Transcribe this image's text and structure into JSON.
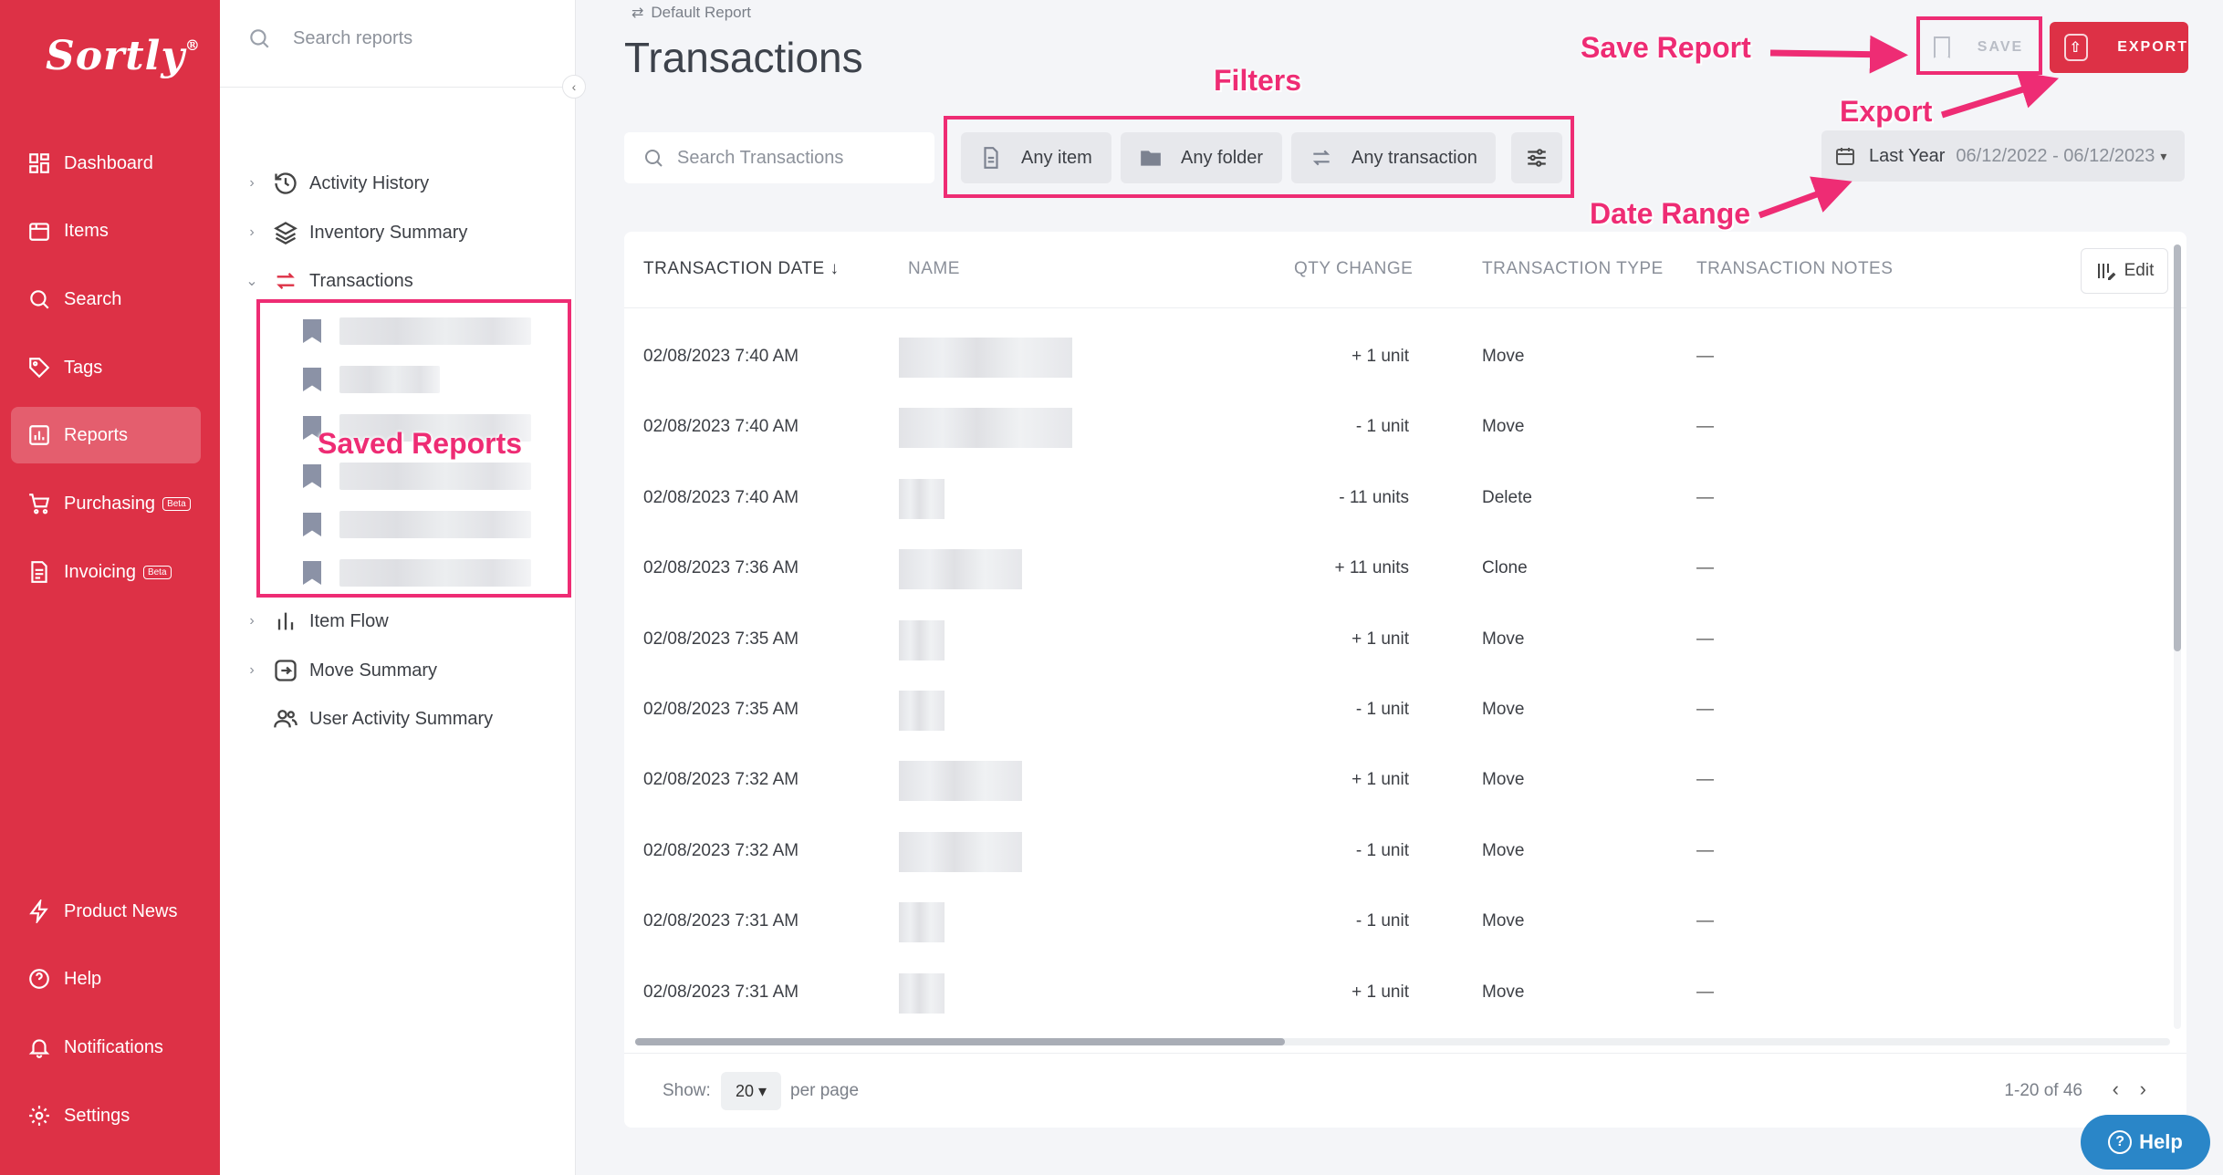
{
  "app": {
    "logo": "Sortly",
    "logo_mark": "®"
  },
  "nav": {
    "items": [
      {
        "label": "Dashboard",
        "icon": "dashboard-icon"
      },
      {
        "label": "Items",
        "icon": "items-icon"
      },
      {
        "label": "Search",
        "icon": "search-icon"
      },
      {
        "label": "Tags",
        "icon": "tag-icon"
      },
      {
        "label": "Reports",
        "icon": "reports-icon",
        "active": true
      },
      {
        "label": "Purchasing",
        "icon": "cart-icon",
        "badge": "Beta"
      },
      {
        "label": "Invoicing",
        "icon": "invoice-icon",
        "badge": "Beta"
      }
    ],
    "bottom": [
      {
        "label": "Product News",
        "icon": "bolt-icon"
      },
      {
        "label": "Help",
        "icon": "help-icon"
      },
      {
        "label": "Notifications",
        "icon": "bell-icon"
      },
      {
        "label": "Settings",
        "icon": "gear-icon"
      }
    ]
  },
  "reports_sidebar": {
    "search_placeholder": "Search reports",
    "tree": [
      {
        "label": "Activity History",
        "icon": "history-icon"
      },
      {
        "label": "Inventory Summary",
        "icon": "layers-icon"
      },
      {
        "label": "Transactions",
        "icon": "transfer-icon",
        "expanded": true
      },
      {
        "label": "Item Flow",
        "icon": "bar-chart-icon"
      },
      {
        "label": "Move Summary",
        "icon": "move-icon"
      },
      {
        "label": "User Activity Summary",
        "icon": "users-icon"
      }
    ],
    "saved_reports_count": 6
  },
  "header": {
    "breadcrumb": "Default Report",
    "title": "Transactions",
    "save_label": "SAVE",
    "export_label": "EXPORT"
  },
  "filters": {
    "search_placeholder": "Search Transactions",
    "item": "Any item",
    "folder": "Any folder",
    "transaction": "Any transaction",
    "date_preset": "Last Year",
    "date_range": "06/12/2022 - 06/12/2023"
  },
  "annotations": {
    "save_report": "Save Report",
    "export": "Export",
    "filters": "Filters",
    "date_range": "Date Range",
    "saved_reports": "Saved Reports"
  },
  "table": {
    "columns": [
      "TRANSACTION DATE",
      "NAME",
      "QTY CHANGE",
      "TRANSACTION TYPE",
      "TRANSACTION NOTES"
    ],
    "edit_label": "Edit",
    "rows": [
      {
        "date": "02/08/2023 7:40 AM",
        "qty": "+ 1  unit",
        "type": "Move",
        "notes": "—"
      },
      {
        "date": "02/08/2023 7:40 AM",
        "qty": "- 1  unit",
        "type": "Move",
        "notes": "—"
      },
      {
        "date": "02/08/2023 7:40 AM",
        "qty": "- 11  units",
        "type": "Delete",
        "notes": "—"
      },
      {
        "date": "02/08/2023 7:36 AM",
        "qty": "+ 11  units",
        "type": "Clone",
        "notes": "—"
      },
      {
        "date": "02/08/2023 7:35 AM",
        "qty": "+ 1  unit",
        "type": "Move",
        "notes": "—"
      },
      {
        "date": "02/08/2023 7:35 AM",
        "qty": "- 1  unit",
        "type": "Move",
        "notes": "—"
      },
      {
        "date": "02/08/2023 7:32 AM",
        "qty": "+ 1  unit",
        "type": "Move",
        "notes": "—"
      },
      {
        "date": "02/08/2023 7:32 AM",
        "qty": "- 1  unit",
        "type": "Move",
        "notes": "—"
      },
      {
        "date": "02/08/2023 7:31 AM",
        "qty": "- 1  unit",
        "type": "Move",
        "notes": "—"
      },
      {
        "date": "02/08/2023 7:31 AM",
        "qty": "+ 1  unit",
        "type": "Move",
        "notes": "—"
      }
    ],
    "show_label": "Show:",
    "per_page": "20",
    "per_page_label": "per page",
    "pagination": "1-20 of 46"
  },
  "help_fab": "Help",
  "colors": {
    "brand": "#dd3146",
    "annotation": "#ee2c74",
    "help": "#2a86c8"
  }
}
